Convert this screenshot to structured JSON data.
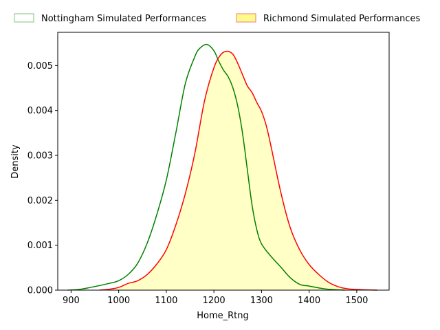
{
  "chart_data": {
    "type": "area",
    "xlabel": "Home_Rtng",
    "ylabel": "Density",
    "xlim": [
      872,
      1568
    ],
    "ylim": [
      0,
      0.00574
    ],
    "xticks": [
      900,
      1000,
      1100,
      1200,
      1300,
      1400,
      1500
    ],
    "xtick_labels": [
      "900",
      "1000",
      "1100",
      "1200",
      "1300",
      "1400",
      "1500"
    ],
    "yticks": [
      0,
      0.001,
      0.002,
      0.003,
      0.004,
      0.005
    ],
    "ytick_labels": [
      "0.000",
      "0.001",
      "0.002",
      "0.003",
      "0.004",
      "0.005"
    ],
    "grid": false,
    "legend_position": "top, outside the plot",
    "series": [
      {
        "name": "Nottingham Simulated Performances",
        "color": "#008000",
        "filled": false,
        "legend_edge": "#7fc07f",
        "points": [
          [
            893,
            0.0
          ],
          [
            920,
            2e-05
          ],
          [
            950,
            8e-05
          ],
          [
            980,
            0.00015
          ],
          [
            1000,
            0.00021
          ],
          [
            1020,
            0.00035
          ],
          [
            1040,
            0.0006
          ],
          [
            1060,
            0.00105
          ],
          [
            1080,
            0.00168
          ],
          [
            1100,
            0.00245
          ],
          [
            1120,
            0.0035
          ],
          [
            1140,
            0.0046
          ],
          [
            1160,
            0.0052
          ],
          [
            1170,
            0.00538
          ],
          [
            1185,
            0.00547
          ],
          [
            1200,
            0.00533
          ],
          [
            1210,
            0.0051
          ],
          [
            1220,
            0.0049
          ],
          [
            1230,
            0.00475
          ],
          [
            1240,
            0.0045
          ],
          [
            1250,
            0.0041
          ],
          [
            1260,
            0.0035
          ],
          [
            1270,
            0.0027
          ],
          [
            1280,
            0.0019
          ],
          [
            1290,
            0.00135
          ],
          [
            1300,
            0.00103
          ],
          [
            1320,
            0.00075
          ],
          [
            1340,
            0.00052
          ],
          [
            1360,
            0.00028
          ],
          [
            1380,
            0.00013
          ],
          [
            1400,
            9e-05
          ],
          [
            1420,
            5e-05
          ],
          [
            1440,
            2e-05
          ],
          [
            1475,
            0.0
          ]
        ]
      },
      {
        "name": "Richmond Simulated Performances",
        "color": "#ff0000",
        "filled": true,
        "fill": "#ffffc6",
        "legend_edge": "#f07878",
        "legend_fill": "#fffb8c",
        "points": [
          [
            960,
            0.0
          ],
          [
            980,
            2e-05
          ],
          [
            1000,
            6e-05
          ],
          [
            1020,
            0.00015
          ],
          [
            1040,
            0.00021
          ],
          [
            1060,
            0.00035
          ],
          [
            1080,
            0.00058
          ],
          [
            1100,
            0.0009
          ],
          [
            1120,
            0.00145
          ],
          [
            1140,
            0.00215
          ],
          [
            1160,
            0.00305
          ],
          [
            1180,
            0.0042
          ],
          [
            1200,
            0.00495
          ],
          [
            1215,
            0.00525
          ],
          [
            1228,
            0.00532
          ],
          [
            1240,
            0.00525
          ],
          [
            1250,
            0.00505
          ],
          [
            1260,
            0.0048
          ],
          [
            1270,
            0.00455
          ],
          [
            1280,
            0.0044
          ],
          [
            1290,
            0.00418
          ],
          [
            1300,
            0.00398
          ],
          [
            1310,
            0.00366
          ],
          [
            1320,
            0.0032
          ],
          [
            1340,
            0.0022
          ],
          [
            1360,
            0.0014
          ],
          [
            1380,
            0.0009
          ],
          [
            1400,
            0.00057
          ],
          [
            1420,
            0.00035
          ],
          [
            1440,
            0.00018
          ],
          [
            1460,
            8e-05
          ],
          [
            1480,
            3e-05
          ],
          [
            1510,
            1e-05
          ],
          [
            1543,
            0.0
          ]
        ]
      }
    ]
  }
}
